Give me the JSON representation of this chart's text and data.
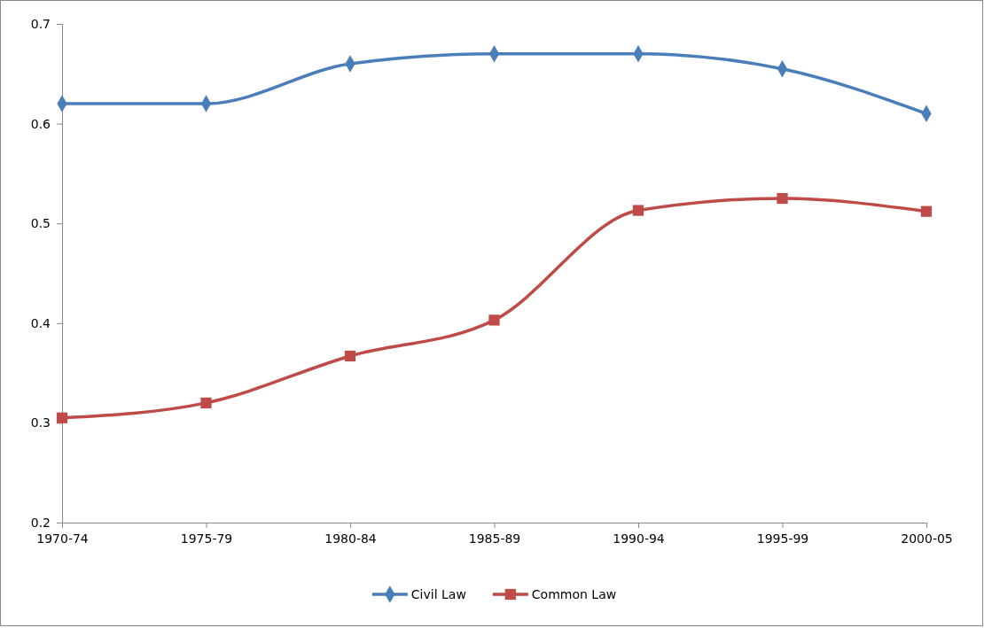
{
  "chart_data": {
    "type": "line",
    "categories": [
      "1970-74",
      "1975-79",
      "1980-84",
      "1985-89",
      "1990-94",
      "1995-99",
      "2000-05"
    ],
    "series": [
      {
        "name": "Civil Law",
        "color": "#4a7ebb",
        "marker": "diamond",
        "values": [
          0.62,
          0.62,
          0.66,
          0.67,
          0.67,
          0.655,
          0.61
        ]
      },
      {
        "name": "Common Law",
        "color": "#be4b48",
        "marker": "square",
        "values": [
          0.305,
          0.32,
          0.367,
          0.403,
          0.513,
          0.525,
          0.512
        ]
      }
    ],
    "ylim": [
      0.2,
      0.7
    ],
    "yticks": [
      0.2,
      0.3,
      0.4,
      0.5,
      0.6,
      0.7
    ],
    "grid": false,
    "legend": "bottom",
    "line_style": "solid"
  }
}
